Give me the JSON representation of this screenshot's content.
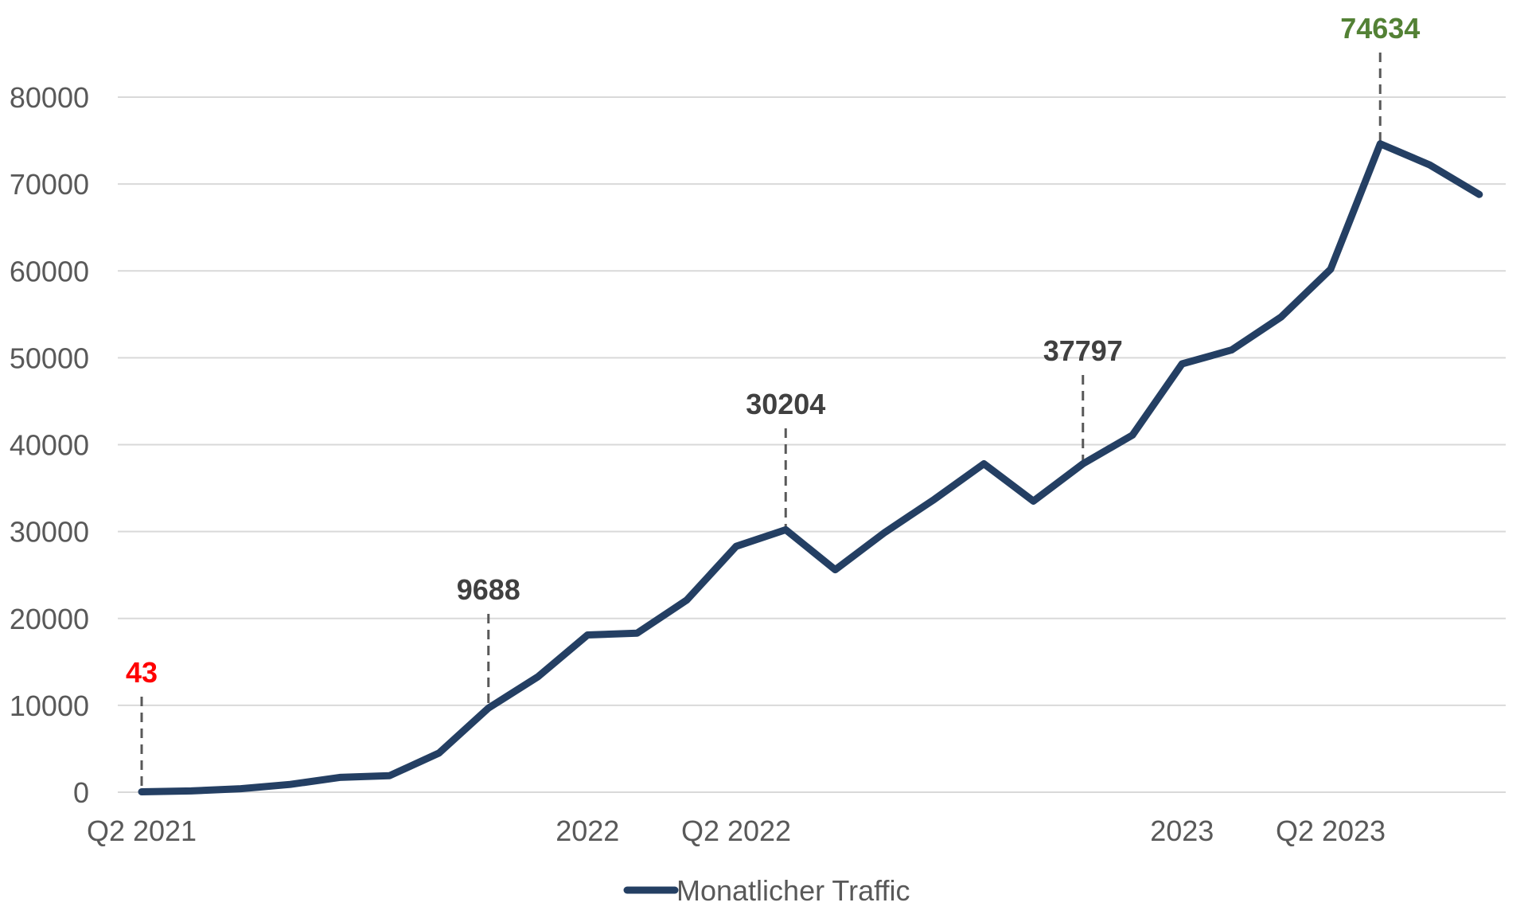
{
  "chart_data": {
    "type": "line",
    "title": "",
    "xlabel": "",
    "ylabel": "",
    "ylim": [
      0,
      80000
    ],
    "yticks": [
      0,
      10000,
      20000,
      30000,
      40000,
      50000,
      60000,
      70000,
      80000
    ],
    "grid": true,
    "legend_position": "bottom",
    "x": [
      "2021-04",
      "2021-05",
      "2021-06",
      "2021-07",
      "2021-08",
      "2021-09",
      "2021-10",
      "2021-11",
      "2021-12",
      "2022-01",
      "2022-02",
      "2022-03",
      "2022-04",
      "2022-05",
      "2022-06",
      "2022-07",
      "2022-08",
      "2022-09",
      "2022-10",
      "2022-11",
      "2022-12",
      "2023-01",
      "2023-02",
      "2023-03",
      "2023-04",
      "2023-05",
      "2023-06",
      "2023-07"
    ],
    "x_tick_labels": [
      {
        "x": "2021-04",
        "label": "Q2 2021"
      },
      {
        "x": "2022-01",
        "label": "2022"
      },
      {
        "x": "2022-04",
        "label": "Q2 2022"
      },
      {
        "x": "2023-01",
        "label": "2023"
      },
      {
        "x": "2023-04",
        "label": "Q2 2023"
      }
    ],
    "series": [
      {
        "name": "Monatlicher Traffic",
        "color": "#243f63",
        "values": [
          43,
          150,
          400,
          900,
          1700,
          1900,
          4500,
          9688,
          13300,
          18100,
          18300,
          22100,
          28300,
          30204,
          25600,
          29900,
          33700,
          37800,
          33500,
          37797,
          41100,
          49300,
          50900,
          54700,
          60200,
          74634,
          72200,
          68800
        ]
      }
    ],
    "annotations": [
      {
        "x": "2021-04",
        "value": 43,
        "label": "43",
        "color": "#ff0000"
      },
      {
        "x": "2021-11",
        "value": 9688,
        "label": "9688",
        "color": "#404040"
      },
      {
        "x": "2022-05",
        "value": 30204,
        "label": "30204",
        "color": "#404040"
      },
      {
        "x": "2022-11",
        "value": 37797,
        "label": "37797",
        "color": "#404040"
      },
      {
        "x": "2023-05",
        "value": 74634,
        "label": "74634",
        "color": "#538135"
      }
    ],
    "colors": {
      "grid": "#d9d9d9",
      "tick_text": "#595959",
      "leader_line": "#595959"
    }
  }
}
